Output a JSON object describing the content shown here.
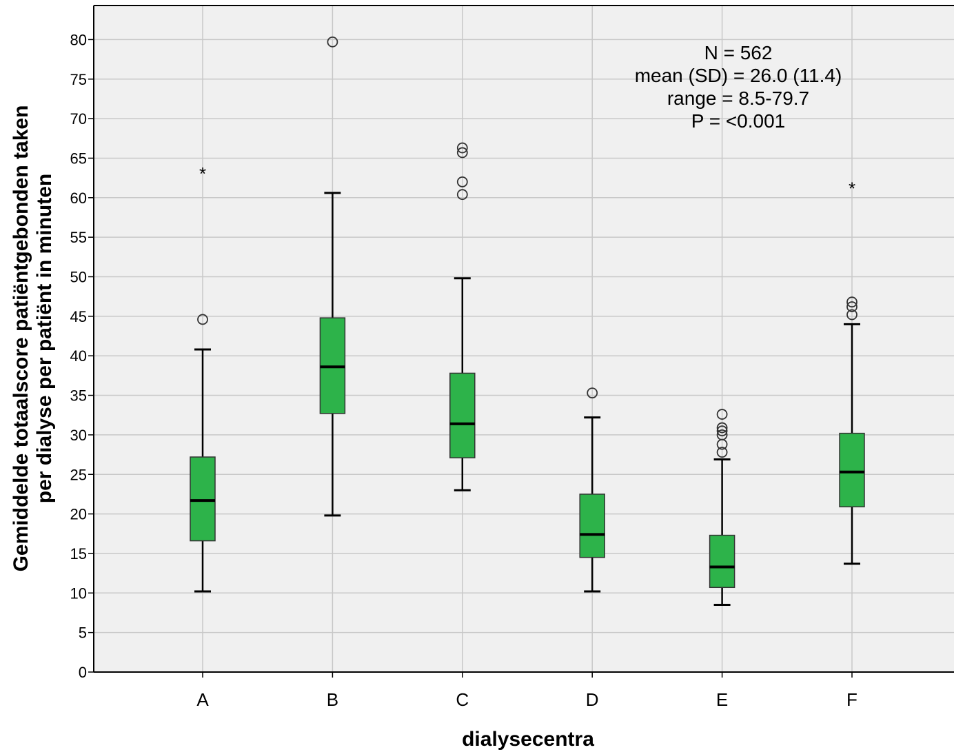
{
  "chart_data": {
    "type": "boxplot",
    "xlabel": "dialysecentra",
    "ylabel_lines": [
      "Gemiddelde totaalscore patiëntgebonden taken",
      "per dialyse per patiënt in minuten"
    ],
    "ylim": [
      0,
      85
    ],
    "yticks": [
      0,
      5,
      10,
      15,
      20,
      25,
      30,
      35,
      40,
      45,
      50,
      55,
      60,
      65,
      70,
      75,
      80
    ],
    "grid": true,
    "box_color": "#2db34a",
    "categories": [
      "A",
      "B",
      "C",
      "D",
      "E",
      "F"
    ],
    "boxes": [
      {
        "category": "A",
        "whisker_low": 10.2,
        "q1": 16.6,
        "median": 21.7,
        "q3": 27.2,
        "whisker_high": 40.8,
        "outliers": [
          44.6
        ],
        "extremes": [
          63.3
        ]
      },
      {
        "category": "B",
        "whisker_low": 19.8,
        "q1": 32.7,
        "median": 38.6,
        "q3": 44.8,
        "whisker_high": 60.6,
        "outliers": [
          79.7
        ],
        "extremes": []
      },
      {
        "category": "C",
        "whisker_low": 23.0,
        "q1": 27.1,
        "median": 31.4,
        "q3": 37.8,
        "whisker_high": 49.8,
        "outliers": [
          60.4,
          62.0,
          65.7,
          66.3
        ],
        "extremes": []
      },
      {
        "category": "D",
        "whisker_low": 10.2,
        "q1": 14.5,
        "median": 17.4,
        "q3": 22.5,
        "whisker_high": 32.2,
        "outliers": [
          35.3
        ],
        "extremes": []
      },
      {
        "category": "E",
        "whisker_low": 8.5,
        "q1": 10.7,
        "median": 13.3,
        "q3": 17.3,
        "whisker_high": 26.9,
        "outliers": [
          27.8,
          28.8,
          30.0,
          30.5,
          30.9,
          32.6
        ],
        "extremes": []
      },
      {
        "category": "F",
        "whisker_low": 13.7,
        "q1": 20.9,
        "median": 25.3,
        "q3": 30.2,
        "whisker_high": 44.0,
        "outliers": [
          45.2,
          46.2,
          46.8
        ],
        "extremes": [
          61.4
        ]
      }
    ],
    "annotation": [
      "N = 562",
      "mean (SD) = 26.0 (11.4)",
      "range = 8.5-79.7",
      "P = <0.001"
    ]
  }
}
